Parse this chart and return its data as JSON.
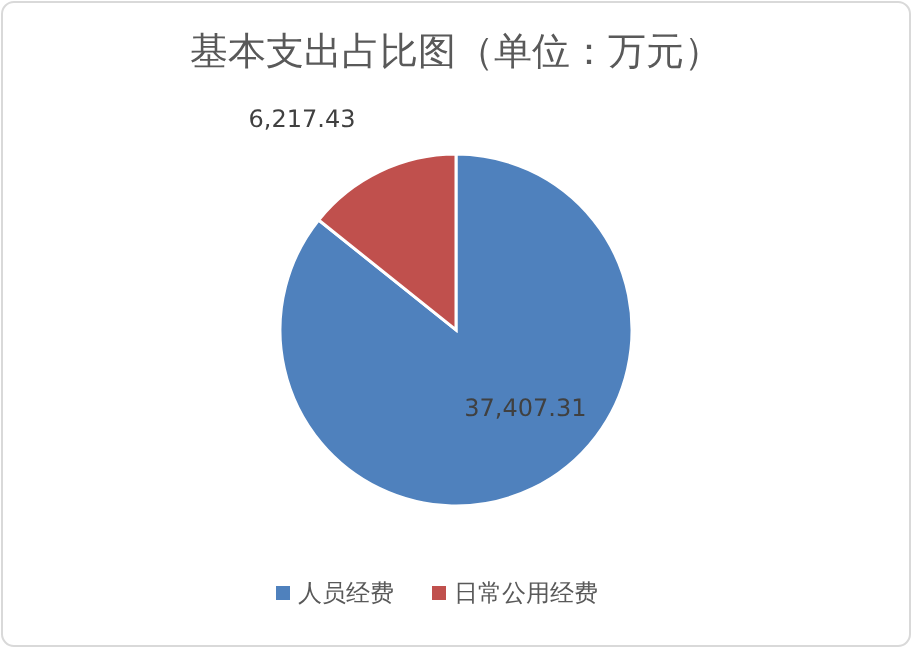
{
  "chart_data": {
    "type": "pie",
    "title": "基本支出占比图（单位：万元）",
    "categories": [
      "人员经费",
      "日常公用经费"
    ],
    "values": [
      37407.31,
      6217.43
    ],
    "colors": [
      "#4f81bd",
      "#c0504d"
    ],
    "value_labels": [
      "37,407.31",
      "6,217.43"
    ],
    "legend": "bottom"
  }
}
